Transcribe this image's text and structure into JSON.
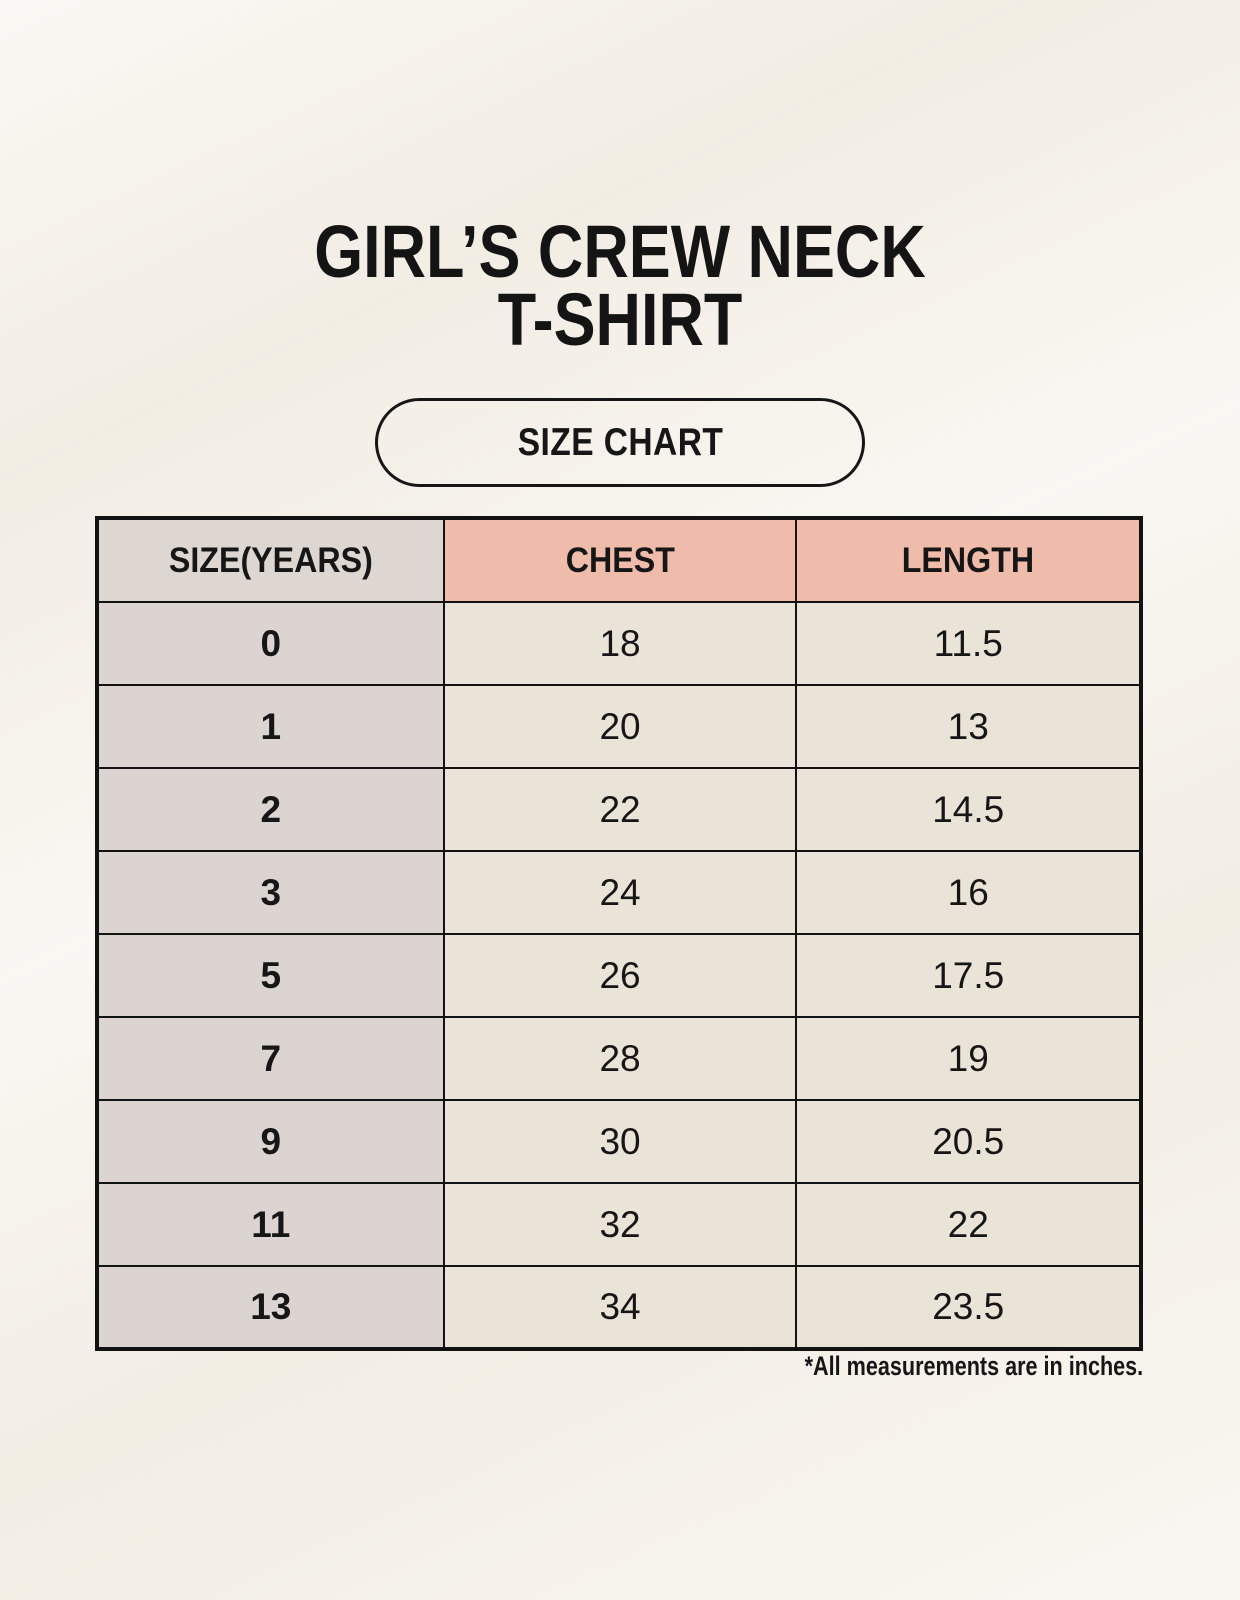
{
  "page": {
    "title_line1": "GIRL’S CREW NECK",
    "title_line2": "T-SHIRT",
    "badge_label": "SIZE CHART",
    "footnote": "*All measurements are in inches."
  },
  "colors": {
    "page_background": "#f4f0e7",
    "header_label_bg": "#ddd6d1",
    "header_accent_bg": "#efbbaa",
    "row_label_bg": "#dbd4d0",
    "value_cell_bg": "#eae3d7",
    "table_border": "#121212",
    "text": "#161616"
  },
  "table": {
    "columns": [
      "SIZE(YEARS)",
      "CHEST",
      "LENGTH"
    ],
    "rows": [
      {
        "size": "0",
        "chest": "18",
        "length": "11.5"
      },
      {
        "size": "1",
        "chest": "20",
        "length": "13"
      },
      {
        "size": "2",
        "chest": "22",
        "length": "14.5"
      },
      {
        "size": "3",
        "chest": "24",
        "length": "16"
      },
      {
        "size": "5",
        "chest": "26",
        "length": "17.5"
      },
      {
        "size": "7",
        "chest": "28",
        "length": "19"
      },
      {
        "size": "9",
        "chest": "30",
        "length": "20.5"
      },
      {
        "size": "11",
        "chest": "32",
        "length": "22"
      },
      {
        "size": "13",
        "chest": "34",
        "length": "23.5"
      }
    ]
  },
  "chart_data": {
    "type": "table",
    "title": "GIRL’S CREW NECK T-SHIRT",
    "subtitle": "SIZE CHART",
    "columns": [
      "SIZE(YEARS)",
      "CHEST",
      "LENGTH"
    ],
    "rows": [
      [
        0,
        18,
        11.5
      ],
      [
        1,
        20,
        13
      ],
      [
        2,
        22,
        14.5
      ],
      [
        3,
        24,
        16
      ],
      [
        5,
        26,
        17.5
      ],
      [
        7,
        28,
        19
      ],
      [
        9,
        30,
        20.5
      ],
      [
        11,
        32,
        22
      ],
      [
        13,
        34,
        23.5
      ]
    ],
    "note": "*All measurements are in inches.",
    "units": "inches"
  }
}
